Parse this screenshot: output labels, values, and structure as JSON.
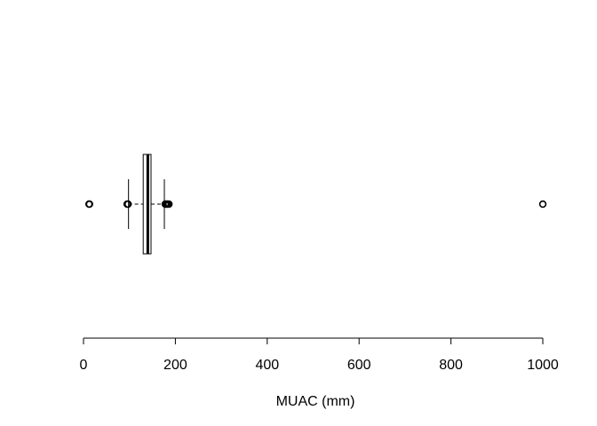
{
  "chart_data": {
    "type": "boxplot",
    "orientation": "horizontal",
    "xlabel": "MUAC (mm)",
    "xlim": [
      -5,
      1035
    ],
    "ticks": [
      0,
      200,
      400,
      600,
      800,
      1000
    ],
    "tick_labels": [
      "0",
      "200",
      "400",
      "600",
      "800",
      "1000"
    ],
    "box": {
      "whisker_low": 98,
      "q1": 130,
      "median": 140,
      "q3": 147,
      "whisker_high": 176
    },
    "outliers": [
      12,
      13,
      95,
      97,
      178,
      181,
      183,
      186,
      1000
    ],
    "grid": false,
    "legend": "none"
  }
}
